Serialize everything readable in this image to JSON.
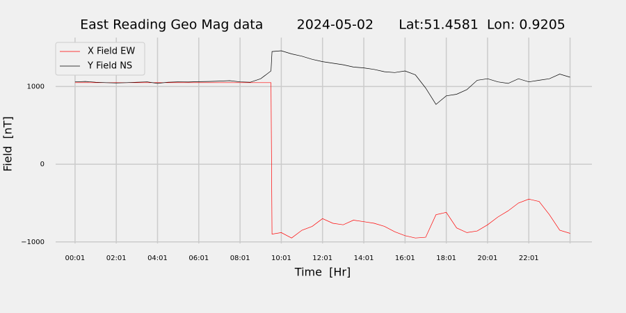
{
  "chart_data": {
    "type": "line",
    "title": "East Reading Geo Mag data        2024-05-02      Lat:51.4581  Lon: 0.9205",
    "xlabel": "Time  [Hr]",
    "ylabel": "Field  [nT]",
    "x": [
      0,
      0.5,
      1,
      1.5,
      2,
      2.5,
      3,
      3.5,
      4,
      4.5,
      5,
      5.5,
      6,
      6.5,
      7,
      7.5,
      8,
      8.5,
      9,
      9.5,
      9.55,
      10,
      10.5,
      11,
      11.5,
      12,
      12.5,
      13,
      13.5,
      14,
      14.5,
      15,
      15.5,
      16,
      16.5,
      17,
      17.5,
      18,
      18.5,
      19,
      19.5,
      20,
      20.5,
      21,
      21.5,
      22,
      22.5,
      23,
      23.5,
      24
    ],
    "series": [
      {
        "name": "X Field EW",
        "color": "#ff0000",
        "values": [
          1050,
          1050,
          1050,
          1050,
          1050,
          1050,
          1050,
          1050,
          1050,
          1050,
          1050,
          1050,
          1050,
          1050,
          1050,
          1050,
          1050,
          1050,
          1050,
          1050,
          -900,
          -880,
          -950,
          -850,
          -800,
          -700,
          -760,
          -780,
          -720,
          -740,
          -760,
          -800,
          -870,
          -920,
          -950,
          -940,
          -650,
          -620,
          -820,
          -880,
          -860,
          -780,
          -680,
          -600,
          -500,
          -450,
          -480,
          -650,
          -850,
          -890
        ]
      },
      {
        "name": "Y Field NS",
        "color": "#000000",
        "values": [
          1060,
          1065,
          1055,
          1050,
          1045,
          1050,
          1055,
          1060,
          1040,
          1055,
          1060,
          1058,
          1062,
          1065,
          1070,
          1075,
          1060,
          1055,
          1100,
          1200,
          1450,
          1460,
          1420,
          1390,
          1350,
          1320,
          1300,
          1280,
          1250,
          1240,
          1220,
          1190,
          1180,
          1200,
          1150,
          980,
          770,
          880,
          900,
          960,
          1080,
          1100,
          1060,
          1040,
          1100,
          1060,
          1080,
          1100,
          1160,
          1120
        ]
      }
    ],
    "xlim": [
      -0.94,
      25.06
    ],
    "ylim": [
      -1020,
      1630
    ],
    "xticks": [
      {
        "value": 0,
        "label": "00:01"
      },
      {
        "value": 2,
        "label": "02:01"
      },
      {
        "value": 4,
        "label": "04:01"
      },
      {
        "value": 6,
        "label": "06:01"
      },
      {
        "value": 8,
        "label": "08:01"
      },
      {
        "value": 10,
        "label": "10:01"
      },
      {
        "value": 12,
        "label": "12:01"
      },
      {
        "value": 14,
        "label": "14:01"
      },
      {
        "value": 16,
        "label": "16:01"
      },
      {
        "value": 18,
        "label": "18:01"
      },
      {
        "value": 20,
        "label": "20:01"
      },
      {
        "value": 22,
        "label": "22:01"
      },
      {
        "value": 24,
        "label": null
      }
    ],
    "yticks": [
      {
        "value": -1000,
        "label": "−1000"
      },
      0,
      1000
    ],
    "grid": true,
    "legend": "upper left"
  }
}
